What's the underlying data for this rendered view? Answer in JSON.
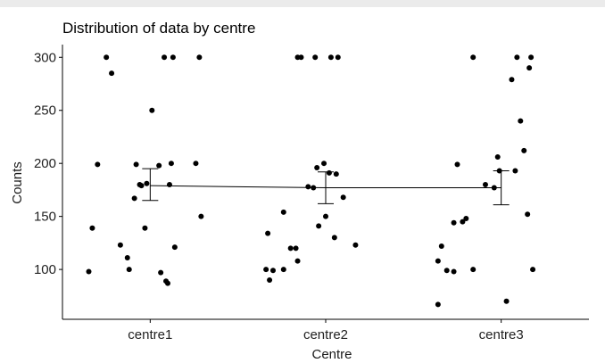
{
  "chart_data": {
    "type": "scatter",
    "title": "Distribution of data by centre",
    "xlabel": "Centre",
    "ylabel": "Counts",
    "categories": [
      "centre1",
      "centre2",
      "centre3"
    ],
    "y_ticks": [
      100,
      150,
      200,
      250,
      300
    ],
    "ylim": [
      53,
      312
    ],
    "grid": false,
    "legend": "none",
    "points": {
      "centre1": [
        {
          "jitter": -0.35,
          "y": 98
        },
        {
          "jitter": -0.33,
          "y": 139
        },
        {
          "jitter": -0.3,
          "y": 199
        },
        {
          "jitter": -0.25,
          "y": 300
        },
        {
          "jitter": -0.22,
          "y": 285
        },
        {
          "jitter": -0.17,
          "y": 123
        },
        {
          "jitter": -0.13,
          "y": 111
        },
        {
          "jitter": -0.12,
          "y": 100
        },
        {
          "jitter": -0.09,
          "y": 167
        },
        {
          "jitter": -0.08,
          "y": 199
        },
        {
          "jitter": -0.06,
          "y": 180
        },
        {
          "jitter": -0.05,
          "y": 179
        },
        {
          "jitter": -0.03,
          "y": 139
        },
        {
          "jitter": -0.02,
          "y": 181
        },
        {
          "jitter": 0.01,
          "y": 250
        },
        {
          "jitter": 0.05,
          "y": 198
        },
        {
          "jitter": 0.06,
          "y": 97
        },
        {
          "jitter": 0.08,
          "y": 300
        },
        {
          "jitter": 0.09,
          "y": 89
        },
        {
          "jitter": 0.1,
          "y": 87
        },
        {
          "jitter": 0.11,
          "y": 180
        },
        {
          "jitter": 0.12,
          "y": 200
        },
        {
          "jitter": 0.13,
          "y": 300
        },
        {
          "jitter": 0.14,
          "y": 121
        },
        {
          "jitter": 0.28,
          "y": 300
        },
        {
          "jitter": 0.29,
          "y": 150
        },
        {
          "jitter": 0.26,
          "y": 200
        }
      ],
      "centre2": [
        {
          "jitter": -0.34,
          "y": 100
        },
        {
          "jitter": -0.33,
          "y": 134
        },
        {
          "jitter": -0.32,
          "y": 90
        },
        {
          "jitter": -0.3,
          "y": 99
        },
        {
          "jitter": -0.24,
          "y": 100
        },
        {
          "jitter": -0.24,
          "y": 154
        },
        {
          "jitter": -0.2,
          "y": 120
        },
        {
          "jitter": -0.17,
          "y": 120
        },
        {
          "jitter": -0.16,
          "y": 108
        },
        {
          "jitter": -0.16,
          "y": 300
        },
        {
          "jitter": -0.14,
          "y": 300
        },
        {
          "jitter": -0.1,
          "y": 178
        },
        {
          "jitter": -0.07,
          "y": 177
        },
        {
          "jitter": -0.06,
          "y": 300
        },
        {
          "jitter": -0.05,
          "y": 196
        },
        {
          "jitter": -0.04,
          "y": 141
        },
        {
          "jitter": -0.01,
          "y": 200
        },
        {
          "jitter": 0.0,
          "y": 150
        },
        {
          "jitter": 0.02,
          "y": 191
        },
        {
          "jitter": 0.03,
          "y": 300
        },
        {
          "jitter": 0.05,
          "y": 130
        },
        {
          "jitter": 0.06,
          "y": 190
        },
        {
          "jitter": 0.07,
          "y": 300
        },
        {
          "jitter": 0.1,
          "y": 168
        },
        {
          "jitter": 0.17,
          "y": 123
        }
      ],
      "centre3": [
        {
          "jitter": -0.36,
          "y": 67
        },
        {
          "jitter": -0.36,
          "y": 108
        },
        {
          "jitter": -0.34,
          "y": 122
        },
        {
          "jitter": -0.31,
          "y": 99
        },
        {
          "jitter": -0.27,
          "y": 98
        },
        {
          "jitter": -0.27,
          "y": 144
        },
        {
          "jitter": -0.25,
          "y": 199
        },
        {
          "jitter": -0.22,
          "y": 145
        },
        {
          "jitter": -0.2,
          "y": 148
        },
        {
          "jitter": -0.16,
          "y": 100
        },
        {
          "jitter": -0.16,
          "y": 300
        },
        {
          "jitter": -0.09,
          "y": 180
        },
        {
          "jitter": -0.04,
          "y": 177
        },
        {
          "jitter": -0.02,
          "y": 206
        },
        {
          "jitter": -0.01,
          "y": 193
        },
        {
          "jitter": 0.03,
          "y": 70
        },
        {
          "jitter": 0.06,
          "y": 279
        },
        {
          "jitter": 0.08,
          "y": 193
        },
        {
          "jitter": 0.09,
          "y": 300
        },
        {
          "jitter": 0.11,
          "y": 240
        },
        {
          "jitter": 0.13,
          "y": 212
        },
        {
          "jitter": 0.15,
          "y": 152
        },
        {
          "jitter": 0.16,
          "y": 290
        },
        {
          "jitter": 0.17,
          "y": 300
        },
        {
          "jitter": 0.18,
          "y": 100
        }
      ]
    },
    "means": [
      {
        "category": "centre1",
        "mean": 179,
        "lower": 165,
        "upper": 195
      },
      {
        "category": "centre2",
        "mean": 177,
        "lower": 162,
        "upper": 192
      },
      {
        "category": "centre3",
        "mean": 177,
        "lower": 161,
        "upper": 193
      }
    ]
  },
  "colors": {
    "points": "#000000",
    "axis": "#000000",
    "topbar": "#ebebeb"
  }
}
